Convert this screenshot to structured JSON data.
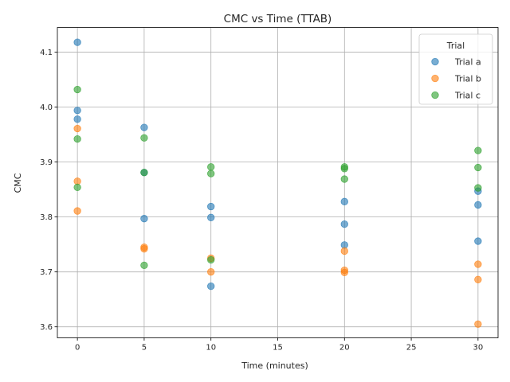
{
  "chart_data": {
    "type": "scatter",
    "title": "CMC vs Time (TTAB)",
    "xlabel": "Time (minutes)",
    "ylabel": "CMC",
    "xlim": [
      -1.5,
      31.5
    ],
    "ylim": [
      3.58,
      4.145
    ],
    "xticks": [
      0,
      5,
      10,
      15,
      20,
      25,
      30
    ],
    "yticks": [
      3.6,
      3.7,
      3.8,
      3.9,
      4.0,
      4.1
    ],
    "grid": true,
    "legend": {
      "title": "Trial",
      "placement": "top-right"
    },
    "series": [
      {
        "name": "Trial a",
        "color": "#1f77b4",
        "points": [
          [
            0,
            4.118
          ],
          [
            0,
            3.994
          ],
          [
            0,
            3.978
          ],
          [
            5,
            3.963
          ],
          [
            5,
            3.881
          ],
          [
            5,
            3.797
          ],
          [
            10,
            3.819
          ],
          [
            10,
            3.799
          ],
          [
            10,
            3.674
          ],
          [
            20,
            3.828
          ],
          [
            20,
            3.787
          ],
          [
            20,
            3.749
          ],
          [
            30,
            3.847
          ],
          [
            30,
            3.822
          ],
          [
            30,
            3.756
          ]
        ]
      },
      {
        "name": "Trial b",
        "color": "#ff7f0e",
        "points": [
          [
            0,
            3.961
          ],
          [
            0,
            3.865
          ],
          [
            0,
            3.811
          ],
          [
            5,
            3.745
          ],
          [
            5,
            3.742
          ],
          [
            10,
            3.725
          ],
          [
            10,
            3.7
          ],
          [
            20,
            3.738
          ],
          [
            20,
            3.703
          ],
          [
            20,
            3.699
          ],
          [
            30,
            3.714
          ],
          [
            30,
            3.686
          ],
          [
            30,
            3.605
          ]
        ]
      },
      {
        "name": "Trial c",
        "color": "#2ca02c",
        "points": [
          [
            0,
            4.032
          ],
          [
            0,
            3.942
          ],
          [
            0,
            3.854
          ],
          [
            5,
            3.944
          ],
          [
            5,
            3.881
          ],
          [
            5,
            3.712
          ],
          [
            10,
            3.891
          ],
          [
            10,
            3.879
          ],
          [
            10,
            3.722
          ],
          [
            20,
            3.891
          ],
          [
            20,
            3.888
          ],
          [
            20,
            3.869
          ],
          [
            30,
            3.921
          ],
          [
            30,
            3.89
          ],
          [
            30,
            3.853
          ]
        ]
      }
    ]
  }
}
